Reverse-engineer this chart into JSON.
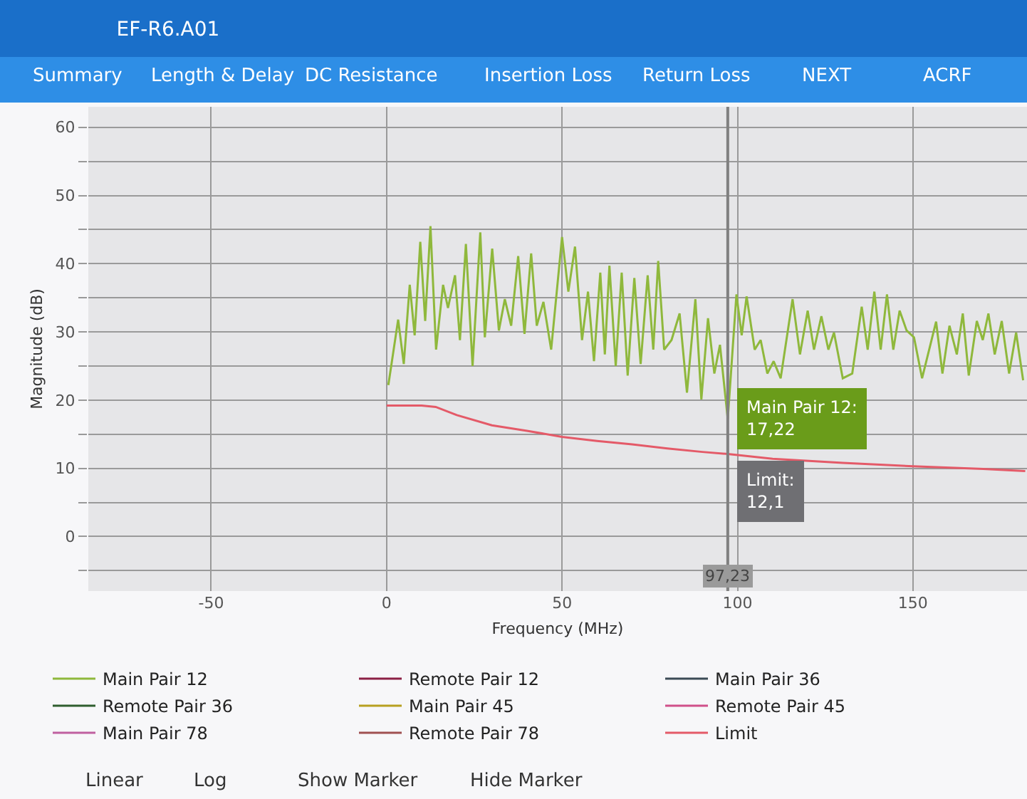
{
  "chart_data": {
    "type": "line",
    "title": "EF-R6.A01",
    "xlabel": "Frequency (MHz)",
    "ylabel": "Magnitude (dB)",
    "xlim": [
      -85,
      182.5
    ],
    "ylim": [
      -8,
      63
    ],
    "xticks": [
      -50,
      0,
      50,
      100,
      150
    ],
    "yticks": [
      {
        "value": -5,
        "label": null
      },
      0,
      {
        "value": 5,
        "label": null
      },
      10,
      {
        "value": 15,
        "label": null
      },
      20,
      {
        "value": 25,
        "label": null
      },
      30,
      {
        "value": 35,
        "label": null
      },
      40,
      {
        "value": 45,
        "label": null
      },
      50,
      {
        "value": 55,
        "label": null
      },
      60
    ],
    "grid": true,
    "legend": "bottom",
    "marker": "none",
    "line_style": "solid",
    "series": [
      {
        "name": "Main Pair 12",
        "color": "#8fb83c",
        "x": [
          0.5,
          3.3,
          4.9,
          6.6,
          8,
          9.6,
          11,
          12.5,
          14.1,
          16.1,
          17.5,
          19.5,
          20.9,
          22.6,
          24.5,
          26.7,
          28,
          30.1,
          32,
          33.7,
          35.5,
          37.5,
          39.3,
          41.2,
          42.8,
          44.7,
          46.9,
          50,
          51.8,
          53.7,
          55.7,
          57.4,
          59.1,
          60.9,
          62.2,
          63.5,
          65.3,
          67,
          68.7,
          70.6,
          72.4,
          74.4,
          76,
          77.4,
          79.1,
          81.2,
          83.5,
          85.6,
          88,
          89.7,
          91.6,
          93.4,
          95,
          97.23,
          99.7,
          101.2,
          102.6,
          104.9,
          106.6,
          108.5,
          110.3,
          112.3,
          115.7,
          117.8,
          120,
          121.8,
          123.9,
          125.9,
          127.5,
          130,
          132.7,
          135.4,
          137.1,
          139,
          140.8,
          142.6,
          144.4,
          146.2,
          148.2,
          150.3,
          152.6,
          156.6,
          158.4,
          160.4,
          162.5,
          164.2,
          165.9,
          168.2,
          169.9,
          171.5,
          173.3,
          175.3,
          177.4,
          179.4,
          181.4
        ],
        "values": [
          22.2,
          31.8,
          25.3,
          36.9,
          29.5,
          43.2,
          31.6,
          45.5,
          27.4,
          36.9,
          33.5,
          38.3,
          28.8,
          42.9,
          25,
          44.6,
          29.2,
          42.2,
          30.2,
          34.8,
          30.9,
          41.1,
          29.7,
          41.5,
          30.9,
          34.4,
          27.4,
          43.9,
          35.9,
          42.5,
          28.8,
          35.9,
          25.7,
          38.7,
          26.7,
          39.7,
          25,
          38.7,
          23.6,
          37.9,
          25.3,
          38.3,
          27.4,
          40.4,
          27.4,
          28.8,
          32.7,
          21.1,
          34.8,
          20.1,
          32,
          23.9,
          28.1,
          17.22,
          35.5,
          29.5,
          35.2,
          27.4,
          28.8,
          23.9,
          25.7,
          23.2,
          34.8,
          26.7,
          33.1,
          27.4,
          32.3,
          27.4,
          29.9,
          23.2,
          23.9,
          33.7,
          27.4,
          35.9,
          27.4,
          35.5,
          27.4,
          33.1,
          30.2,
          29.2,
          23.2,
          31.5,
          23.9,
          30.9,
          26.7,
          32.7,
          23.6,
          31.6,
          28.8,
          32.7,
          26.7,
          31.6,
          23.9,
          29.9,
          22.9
        ]
      },
      {
        "name": "Remote Pair 12",
        "color": "#8b2045"
      },
      {
        "name": "Main Pair 36",
        "color": "#3b4a55"
      },
      {
        "name": "Remote Pair 36",
        "color": "#2f5e2f"
      },
      {
        "name": "Main Pair 45",
        "color": "#b8a020"
      },
      {
        "name": "Remote Pair 45",
        "color": "#d0508a"
      },
      {
        "name": "Main Pair 78",
        "color": "#c060a0"
      },
      {
        "name": "Remote Pair 78",
        "color": "#a05050"
      },
      {
        "name": "Limit",
        "color": "#e45a68",
        "x": [
          0,
          10,
          14,
          20,
          30,
          40,
          50,
          60,
          70,
          80,
          90,
          97.23,
          110,
          130,
          150,
          170,
          182
        ],
        "values": [
          19.2,
          19.2,
          19,
          17.8,
          16.3,
          15.5,
          14.6,
          14,
          13.5,
          12.9,
          12.4,
          12.1,
          11.4,
          10.8,
          10.3,
          9.9,
          9.6
        ]
      }
    ],
    "ref_lines": [
      {
        "axis": "x",
        "value": 97.23,
        "label": "97,23",
        "color": "#808080"
      }
    ],
    "annotations": [
      "Summary",
      "Length & Delay",
      "DC Resistance",
      "Insertion Loss",
      "Return Loss",
      "NEXT",
      "ACRF",
      "Linear",
      "Log",
      "Show Marker",
      "Hide Marker",
      {
        "text": "Main Pair 12:\n17,22",
        "x": 97.23,
        "y": 17.22
      },
      {
        "text": "Limit:\n12,1",
        "x": 97.23,
        "y": 12.1
      }
    ]
  }
}
